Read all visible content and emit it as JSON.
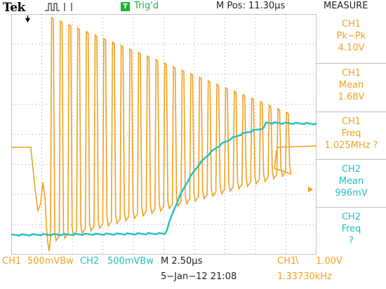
{
  "header": {
    "brand": "Tek",
    "trigger_badge": "T",
    "trigger_status": "Trig'd",
    "horizontal_position": "M Pos: 11.30µs",
    "panel_title": "MEASURE"
  },
  "measurements": [
    {
      "channel": "CH1",
      "name": "Pk−Pk",
      "value": "4.10V"
    },
    {
      "channel": "CH1",
      "name": "Mean",
      "value": "1.68V"
    },
    {
      "channel": "CH1",
      "name": "Freq",
      "value": "1.025MHz ?"
    },
    {
      "channel": "CH2",
      "name": "Mean",
      "value": "996mV"
    },
    {
      "channel": "CH2",
      "name": "Freq",
      "value": "?"
    }
  ],
  "markers": {
    "ch2_ground": "2+"
  },
  "footer": {
    "ch1_label": "CH1",
    "ch1_scale": "500mVBw",
    "ch2_label": "CH2",
    "ch2_scale": "500mVBw",
    "timebase": "M 2.50µs",
    "date_time": "5−Jan−12 21:08",
    "trigger_source": "CH1",
    "trigger_slope": "\\",
    "trigger_level": "1.00V",
    "trigger_frequency": "1.33730kHz"
  },
  "colors": {
    "ch1": "#f0a020",
    "ch2": "#1fbfbf",
    "trigger": "#1db33a"
  }
}
